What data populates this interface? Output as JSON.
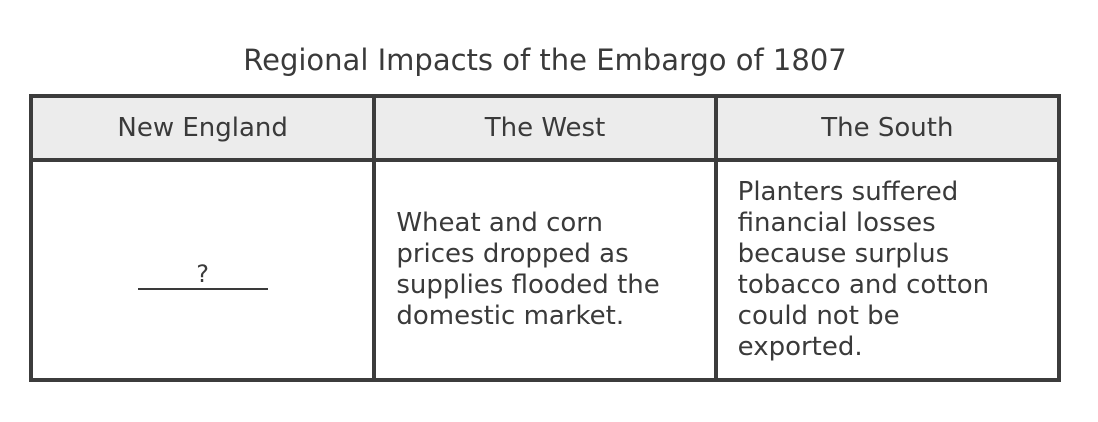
{
  "title": "Regional Impacts of the Embargo of 1807",
  "table": {
    "headers": [
      "New England",
      "The West",
      "The South"
    ],
    "cells": {
      "new_england": "?",
      "west": "Wheat and corn\nprices dropped as\nsupplies flooded the\ndomestic market.",
      "south": "Planters suffered\nfinancial losses\nbecause surplus\ntobacco and cotton\ncould not be\nexported."
    }
  }
}
